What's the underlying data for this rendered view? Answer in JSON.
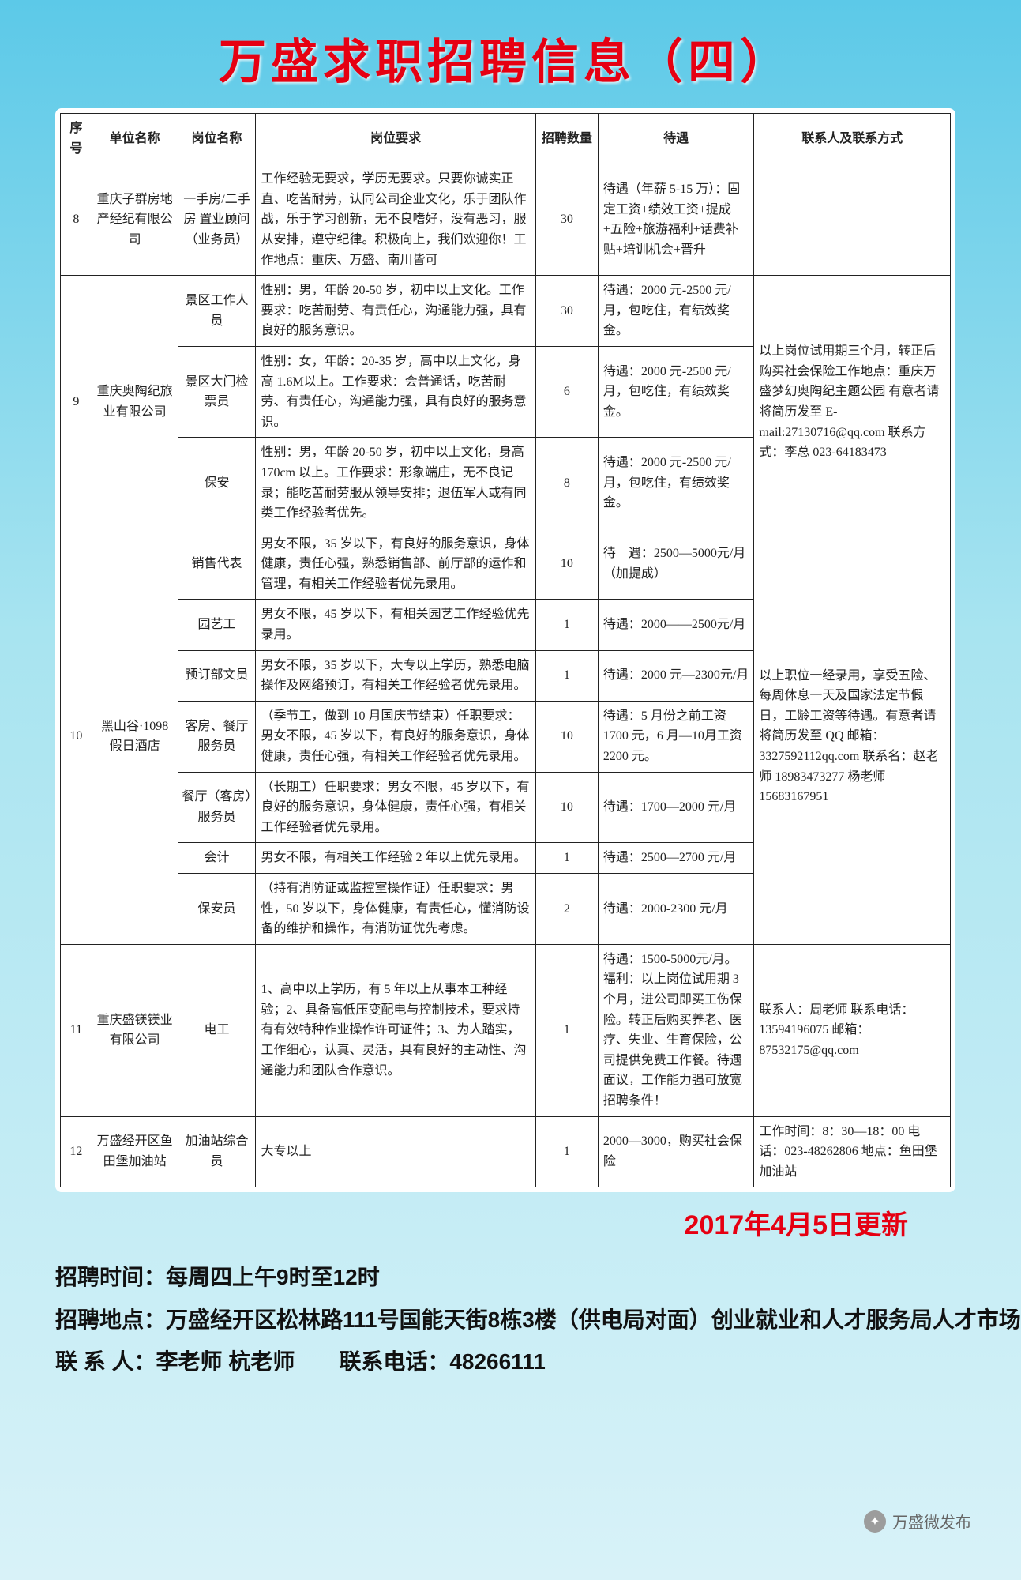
{
  "title": "万盛求职招聘信息（四）",
  "headers": [
    "序号",
    "单位名称",
    "岗位名称",
    "岗位要求",
    "招聘数量",
    "待遇",
    "联系人及联系方式"
  ],
  "rows": [
    {
      "seq": "8",
      "org": "重庆子群房地产经纪有限公司",
      "positions": [
        {
          "pos": "一手房/二手房 置业顾问（业务员）",
          "req": "工作经验无要求，学历无要求。只要你诚实正直、吃苦耐劳，认同公司企业文化，乐于团队作战，乐于学习创新，无不良嗜好，没有恶习，服从安排，遵守纪律。积极向上，我们欢迎你！工作地点：重庆、万盛、南川皆可",
          "num": "30",
          "ben": "待遇（年薪 5-15 万）：固定工资+绩效工资+提成+五险+旅游福利+话费补贴+培训机会+晋升"
        }
      ],
      "contact": ""
    },
    {
      "seq": "9",
      "org": "重庆奥陶纪旅业有限公司",
      "positions": [
        {
          "pos": "景区工作人员",
          "req": "性别：男，年龄 20-50 岁，初中以上文化。工作要求：吃苦耐劳、有责任心，沟通能力强，具有良好的服务意识。",
          "num": "30",
          "ben": "待遇：2000 元-2500 元/月，包吃住，有绩效奖金。"
        },
        {
          "pos": "景区大门检票员",
          "req": "性别：女，年龄：20-35 岁，高中以上文化，身高 1.6M以上。工作要求：会普通话，吃苦耐劳、有责任心，沟通能力强，具有良好的服务意识。",
          "num": "6",
          "ben": "待遇：2000 元-2500 元/月，包吃住，有绩效奖金。"
        },
        {
          "pos": "保安",
          "req": "性别：男，年龄 20-50 岁，初中以上文化，身高 170cm 以上。工作要求：形象端庄，无不良记录；能吃苦耐劳服从领导安排；退伍军人或有同类工作经验者优先。",
          "num": "8",
          "ben": "待遇：2000 元-2500 元/月，包吃住，有绩效奖金。"
        }
      ],
      "contact": "以上岗位试用期三个月，转正后购买社会保险工作地点：重庆万盛梦幻奥陶纪主题公园 有意者请将简历发至 E-mail:27130716@qq.com 联系方式：李总 023-64183473"
    },
    {
      "seq": "10",
      "org": "黑山谷·1098 假日酒店",
      "positions": [
        {
          "pos": "销售代表",
          "req": "男女不限，35 岁以下，有良好的服务意识，身体健康，责任心强，熟悉销售部、前厅部的运作和管理，有相关工作经验者优先录用。",
          "num": "10",
          "ben": "待　遇：2500—5000元/月（加提成）"
        },
        {
          "pos": "园艺工",
          "req": "男女不限，45 岁以下，有相关园艺工作经验优先录用。",
          "num": "1",
          "ben": "待遇：2000——2500元/月"
        },
        {
          "pos": "预订部文员",
          "req": "男女不限，35 岁以下，大专以上学历，熟悉电脑操作及网络预订，有相关工作经验者优先录用。",
          "num": "1",
          "ben": "待遇：2000 元—2300元/月"
        },
        {
          "pos": "客房、餐厅服务员",
          "req": "（季节工，做到 10 月国庆节结束）任职要求：男女不限，45 岁以下，有良好的服务意识，身体健康，责任心强，有相关工作经验者优先录用。",
          "num": "10",
          "ben": "待遇：5 月份之前工资 1700 元，6 月—10月工资 2200 元。"
        },
        {
          "pos": "餐厅（客房）服务员",
          "req": "（长期工）任职要求：男女不限，45 岁以下，有良好的服务意识，身体健康，责任心强，有相关工作经验者优先录用。",
          "num": "10",
          "ben": "待遇：1700—2000 元/月"
        },
        {
          "pos": "会计",
          "req": "男女不限，有相关工作经验 2 年以上优先录用。",
          "num": "1",
          "ben": "待遇：2500—2700 元/月"
        },
        {
          "pos": "保安员",
          "req": "（持有消防证或监控室操作证）任职要求：男性，50 岁以下，身体健康，有责任心，懂消防设备的维护和操作，有消防证优先考虑。",
          "num": "2",
          "ben": "待遇：2000-2300 元/月"
        }
      ],
      "contact": "以上职位一经录用，享受五险、每周休息一天及国家法定节假日，工龄工资等待遇。有意者请将简历发至 QQ 邮箱：3327592112qq.com 联系名：赵老师 18983473277 杨老师 15683167951"
    },
    {
      "seq": "11",
      "org": "重庆盛镁镁业有限公司",
      "positions": [
        {
          "pos": "电工",
          "req": "1、高中以上学历，有 5 年以上从事本工种经验；2、具备高低压变配电与控制技术，要求持有有效特种作业操作许可证件；3、为人踏实，工作细心，认真、灵活，具有良好的主动性、沟通能力和团队合作意识。",
          "num": "1",
          "ben": "待遇：1500-5000元/月。福利：以上岗位试用期 3 个月，进公司即买工伤保险。转正后购买养老、医疗、失业、生育保险，公司提供免费工作餐。待遇面议，工作能力强可放宽招聘条件！"
        }
      ],
      "contact": "联系人：周老师 联系电话：13594196075 邮箱：87532175@qq.com"
    },
    {
      "seq": "12",
      "org": "万盛经开区鱼田堡加油站",
      "positions": [
        {
          "pos": "加油站综合员",
          "req": "大专以上",
          "num": "1",
          "ben": "2000—3000，购买社会保险"
        }
      ],
      "contact": "工作时间：8：30—18：00 电话：023-48262806 地点：鱼田堡加油站"
    }
  ],
  "updateText": "2017年4月5日更新",
  "footer": {
    "l1": "招聘时间：每周四上午9时至12时",
    "l2": "招聘地点：万盛经开区松林路111号国能天街8栋3楼（供电局对面）创业就业和人才服务局人才市场",
    "l3": "联 系 人：李老师 杭老师　　联系电话：48266111"
  },
  "wxTag": "万盛微发布"
}
